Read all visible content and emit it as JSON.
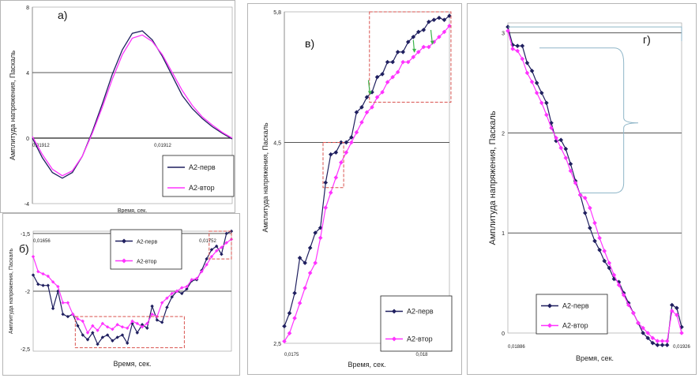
{
  "colors": {
    "perv": "#1f1f5f",
    "vtor": "#ff33ff",
    "grid": "#555555",
    "box": "#d9534f",
    "bracket": "#8fb6c8",
    "arrow": "#3cb44b"
  },
  "chart_data": [
    {
      "id": "a",
      "type": "line",
      "panel_label": "а)",
      "title": "",
      "xlabel": "Время, сек.",
      "ylabel": "Амплитуда напряжения, Паскаль",
      "ylim": [
        -4,
        8
      ],
      "xlim": [
        0,
        100
      ],
      "y_ticks": [
        "8",
        "4",
        "0",
        "-4"
      ],
      "x_ticks": [
        "0,01912",
        "0,01912"
      ],
      "legend": {
        "position": "bottom-right",
        "entries": [
          "А2-перв",
          "А2-втор"
        ]
      },
      "series": [
        {
          "name": "А2-перв",
          "x": [
            0,
            5,
            10,
            15,
            20,
            25,
            30,
            35,
            40,
            45,
            50,
            55,
            60,
            65,
            70,
            75,
            80,
            85,
            90,
            95,
            100
          ],
          "values": [
            0,
            -1.2,
            -2.1,
            -2.45,
            -2.1,
            -1.1,
            0.4,
            2.1,
            3.9,
            5.4,
            6.4,
            6.55,
            6.0,
            5.0,
            3.8,
            2.6,
            1.8,
            1.2,
            0.7,
            0.3,
            -0.05
          ]
        },
        {
          "name": "А2-втор",
          "x": [
            0,
            5,
            10,
            15,
            20,
            25,
            30,
            35,
            40,
            45,
            50,
            55,
            60,
            65,
            70,
            75,
            80,
            85,
            90,
            95,
            100
          ],
          "values": [
            0.1,
            -1.0,
            -1.9,
            -2.3,
            -2.0,
            -1.1,
            0.3,
            1.9,
            3.6,
            5.1,
            6.1,
            6.3,
            5.9,
            5.1,
            4.0,
            2.9,
            2.0,
            1.3,
            0.8,
            0.35,
            0
          ]
        }
      ]
    },
    {
      "id": "b",
      "type": "line",
      "panel_label": "б)",
      "title": "",
      "xlabel": "Время, сек.",
      "ylabel": "Амплитуда напряжения, Паскаль",
      "ylim": [
        -2.52,
        -1.48
      ],
      "xlim": [
        0,
        40
      ],
      "y_ticks": [
        "-1,5",
        "-2",
        "-2,5"
      ],
      "x_ticks": [
        "0,01656",
        "0,01752"
      ],
      "legend": {
        "position": "top-center",
        "entries": [
          "А2-перв",
          "А2-втор"
        ]
      },
      "series": [
        {
          "name": "А2-перв",
          "x": [
            0,
            1,
            2,
            3,
            4,
            5,
            6,
            7,
            8,
            9,
            10,
            11,
            12,
            13,
            14,
            15,
            16,
            17,
            18,
            19,
            20,
            21,
            22,
            23,
            24,
            25,
            26,
            27,
            28,
            29,
            30,
            31,
            32,
            33,
            34,
            35,
            36,
            37,
            38,
            39,
            40
          ],
          "values": [
            -1.86,
            -1.94,
            -1.95,
            -1.95,
            -2.15,
            -2.0,
            -2.2,
            -2.22,
            -2.2,
            -2.3,
            -2.38,
            -2.42,
            -2.36,
            -2.46,
            -2.4,
            -2.38,
            -2.43,
            -2.4,
            -2.38,
            -2.45,
            -2.28,
            -2.36,
            -2.29,
            -2.32,
            -2.13,
            -2.25,
            -2.27,
            -2.14,
            -2.05,
            -2.0,
            -2.02,
            -1.98,
            -1.91,
            -1.9,
            -1.82,
            -1.72,
            -1.64,
            -1.61,
            -1.68,
            -1.5,
            -1.48
          ]
        },
        {
          "name": "А2-втор",
          "x": [
            0,
            1,
            2,
            3,
            4,
            5,
            6,
            7,
            8,
            9,
            10,
            11,
            12,
            13,
            14,
            15,
            16,
            17,
            18,
            19,
            20,
            21,
            22,
            23,
            24,
            25,
            26,
            27,
            28,
            29,
            30,
            31,
            32,
            33,
            34,
            35,
            36,
            37,
            38,
            39,
            40
          ],
          "values": [
            -1.7,
            -1.83,
            -1.85,
            -1.87,
            -1.92,
            -1.96,
            -2.1,
            -2.1,
            -2.2,
            -2.24,
            -2.26,
            -2.36,
            -2.3,
            -2.34,
            -2.28,
            -2.31,
            -2.33,
            -2.29,
            -2.31,
            -2.32,
            -2.26,
            -2.28,
            -2.31,
            -2.28,
            -2.2,
            -2.22,
            -2.1,
            -2.06,
            -2.02,
            -2.0,
            -1.97,
            -1.96,
            -1.9,
            -1.89,
            -1.83,
            -1.77,
            -1.7,
            -1.65,
            -1.62,
            -1.58,
            -1.55
          ]
        }
      ]
    },
    {
      "id": "v",
      "type": "line",
      "panel_label": "в)",
      "title": "",
      "xlabel": "Время, сек.",
      "ylabel": "Амплитуда напряжения, Паскаль",
      "ylim": [
        2.5,
        5.8
      ],
      "xlim": [
        0,
        32
      ],
      "y_ticks": [
        "5,8",
        "4,5",
        "2,5"
      ],
      "x_ticks": [
        "0,0175",
        "0,018"
      ],
      "legend": {
        "position": "bottom-right",
        "entries": [
          "А2-перв",
          "А2-втор"
        ]
      },
      "series": [
        {
          "name": "А2-перв",
          "x": [
            0,
            1,
            2,
            3,
            4,
            5,
            6,
            7,
            8,
            9,
            10,
            11,
            12,
            13,
            14,
            15,
            16,
            17,
            18,
            19,
            20,
            21,
            22,
            23,
            24,
            25,
            26,
            27,
            28,
            29,
            30,
            31,
            32
          ],
          "values": [
            2.67,
            2.8,
            3.0,
            3.35,
            3.3,
            3.45,
            3.6,
            3.65,
            4.1,
            4.38,
            4.4,
            4.5,
            4.5,
            4.55,
            4.8,
            4.85,
            4.95,
            5.0,
            5.15,
            5.18,
            5.3,
            5.3,
            5.4,
            5.4,
            5.5,
            5.55,
            5.6,
            5.62,
            5.7,
            5.72,
            5.74,
            5.72,
            5.76
          ]
        },
        {
          "name": "А2-втор",
          "x": [
            0,
            1,
            2,
            3,
            4,
            5,
            6,
            7,
            8,
            9,
            10,
            11,
            12,
            13,
            14,
            15,
            16,
            17,
            18,
            19,
            20,
            21,
            22,
            23,
            24,
            25,
            26,
            27,
            28,
            29,
            30,
            31,
            32
          ],
          "values": [
            2.52,
            2.6,
            2.75,
            2.9,
            3.05,
            3.2,
            3.3,
            3.55,
            3.85,
            4.0,
            4.15,
            4.3,
            4.4,
            4.5,
            4.6,
            4.7,
            4.8,
            4.85,
            4.95,
            5.0,
            5.1,
            5.15,
            5.2,
            5.3,
            5.3,
            5.35,
            5.4,
            5.45,
            5.45,
            5.5,
            5.55,
            5.6,
            5.66
          ]
        }
      ]
    },
    {
      "id": "g",
      "type": "line",
      "panel_label": "г)",
      "title": "",
      "xlabel": "Время, сек.",
      "ylabel": "Амплитуда напряжения, Паскаль",
      "ylim": [
        0,
        3.1
      ],
      "xlim": [
        0,
        36
      ],
      "y_ticks": [
        "3",
        "2",
        "1",
        "0"
      ],
      "x_ticks": [
        "0,01886",
        "0,01926"
      ],
      "legend": {
        "position": "bottom-left",
        "entries": [
          "А2-перв",
          "А2-втор"
        ]
      },
      "series": [
        {
          "name": "А2-перв",
          "x": [
            0,
            1,
            2,
            3,
            4,
            5,
            6,
            7,
            8,
            9,
            10,
            11,
            12,
            13,
            14,
            15,
            16,
            17,
            18,
            19,
            20,
            21,
            22,
            23,
            24,
            25,
            26,
            27,
            28,
            29,
            30,
            31,
            32,
            33,
            34,
            35,
            36
          ],
          "values": [
            3.06,
            2.88,
            2.87,
            2.87,
            2.7,
            2.62,
            2.5,
            2.4,
            2.3,
            2.1,
            1.92,
            1.93,
            1.84,
            1.69,
            1.52,
            1.38,
            1.2,
            1.05,
            0.92,
            0.83,
            0.72,
            0.65,
            0.54,
            0.51,
            0.4,
            0.3,
            0.2,
            0.1,
            0.0,
            -0.05,
            -0.1,
            -0.12,
            -0.12,
            -0.12,
            0.28,
            0.25,
            0.06
          ]
        },
        {
          "name": "А2-втор",
          "x": [
            0,
            1,
            2,
            3,
            4,
            5,
            6,
            7,
            8,
            9,
            10,
            11,
            12,
            13,
            14,
            15,
            16,
            17,
            18,
            19,
            20,
            21,
            22,
            23,
            24,
            25,
            26,
            27,
            28,
            29,
            30,
            31,
            32,
            33,
            34,
            35,
            36
          ],
          "values": [
            3.02,
            2.84,
            2.82,
            2.74,
            2.6,
            2.51,
            2.4,
            2.3,
            2.18,
            2.05,
            1.95,
            1.85,
            1.75,
            1.62,
            1.5,
            1.38,
            1.35,
            1.25,
            1.1,
            0.95,
            0.82,
            0.7,
            0.58,
            0.48,
            0.38,
            0.28,
            0.2,
            0.1,
            0.05,
            0.0,
            -0.05,
            -0.08,
            -0.08,
            -0.08,
            0.22,
            0.18,
            0.0
          ]
        }
      ]
    }
  ]
}
